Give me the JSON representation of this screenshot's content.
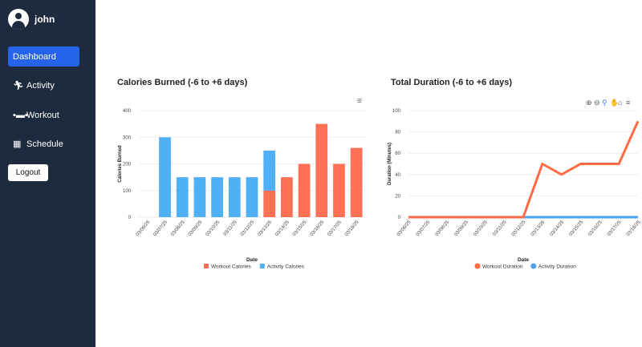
{
  "sidebar": {
    "username": "john",
    "items": [
      {
        "label": "Dashboard",
        "icon": "dashboard"
      },
      {
        "label": "Activity",
        "icon": "running-icon"
      },
      {
        "label": "Workout",
        "icon": "dumbbell-icon"
      },
      {
        "label": "Schedule",
        "icon": "calendar-icon"
      }
    ],
    "logout": "Logout",
    "active_color": "#2563eb"
  },
  "chart_data": [
    {
      "type": "bar",
      "stacked": true,
      "title": "Calories Burned (-6 to +6 days)",
      "xlabel": "Date",
      "ylabel": "Calories Burned",
      "ylim": [
        0,
        400
      ],
      "yticks": [
        0,
        100,
        200,
        300,
        400
      ],
      "categories": [
        "03/06/25",
        "03/07/25",
        "03/08/25",
        "03/09/25",
        "03/10/25",
        "03/11/25",
        "03/12/25",
        "03/13/25",
        "03/14/25",
        "03/15/25",
        "03/16/25",
        "03/17/25",
        "03/18/25"
      ],
      "series": [
        {
          "name": "Workout Calories",
          "color": "#ff7055",
          "values": [
            0,
            0,
            0,
            0,
            0,
            0,
            0,
            100,
            150,
            200,
            350,
            200,
            260
          ]
        },
        {
          "name": "Activity Calories",
          "color": "#4fb0f5",
          "values": [
            0,
            300,
            150,
            150,
            150,
            150,
            150,
            150,
            0,
            0,
            0,
            0,
            0
          ]
        }
      ],
      "legend": "bottom"
    },
    {
      "type": "line",
      "title": "Total Duration (-6 to +6 days)",
      "xlabel": "Date",
      "ylabel": "Duration (Minutes)",
      "ylim": [
        0,
        100
      ],
      "yticks": [
        0,
        20,
        40,
        60,
        80,
        100
      ],
      "categories": [
        "03/06/25",
        "03/07/25",
        "03/08/25",
        "03/09/25",
        "03/10/25",
        "03/11/25",
        "03/12/25",
        "03/13/25",
        "03/14/25",
        "03/15/25",
        "03/16/25",
        "03/17/25",
        "03/18/25"
      ],
      "series": [
        {
          "name": "Workout Duration",
          "color": "#ff6a45",
          "values": [
            0,
            0,
            0,
            0,
            0,
            0,
            0,
            50,
            40,
            50,
            50,
            50,
            90
          ]
        },
        {
          "name": "Activity Duration",
          "color": "#4a9ff0",
          "values": [
            0,
            0,
            0,
            0,
            0,
            0,
            0,
            0,
            0,
            0,
            0,
            0,
            0
          ]
        }
      ],
      "legend": "bottom"
    }
  ]
}
